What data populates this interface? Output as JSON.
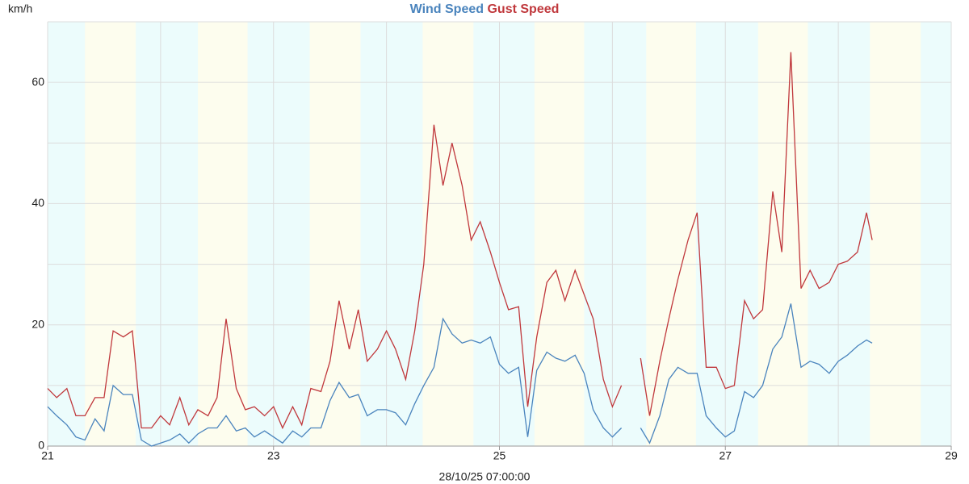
{
  "chart_data": {
    "type": "line",
    "y_label": "km/h",
    "x_label": "28/10/25 07:00:00",
    "x": [
      21,
      21.08,
      21.17,
      21.25,
      21.33,
      21.42,
      21.5,
      21.58,
      21.67,
      21.75,
      21.83,
      21.92,
      22,
      22.08,
      22.17,
      22.25,
      22.33,
      22.42,
      22.5,
      22.58,
      22.67,
      22.75,
      22.83,
      22.92,
      23,
      23.08,
      23.17,
      23.25,
      23.33,
      23.42,
      23.5,
      23.58,
      23.67,
      23.75,
      23.83,
      23.92,
      24,
      24.08,
      24.17,
      24.25,
      24.33,
      24.42,
      24.5,
      24.58,
      24.67,
      24.75,
      24.83,
      24.92,
      25,
      25.08,
      25.17,
      25.25,
      25.33,
      25.42,
      25.5,
      25.58,
      25.67,
      25.75,
      25.83,
      25.92,
      26,
      26.08,
      26.17,
      26.25,
      26.33,
      26.42,
      26.5,
      26.58,
      26.67,
      26.75,
      26.83,
      26.92,
      27,
      27.08,
      27.17,
      27.25,
      27.33,
      27.42,
      27.5,
      27.58,
      27.67,
      27.75,
      27.83,
      27.92,
      28,
      28.08,
      28.17,
      28.25,
      28.3
    ],
    "series": [
      {
        "name": "Wind Speed",
        "color": "#4a84bd",
        "values": [
          6.5,
          5,
          3.5,
          1.5,
          1,
          4.5,
          2.5,
          10,
          8.5,
          8.5,
          1,
          0,
          0.5,
          1,
          2,
          0.5,
          2,
          3,
          3,
          5,
          2.5,
          3,
          1.5,
          2.5,
          1.5,
          0.5,
          2.5,
          1.5,
          3,
          3,
          7.5,
          10.5,
          8,
          8.5,
          5,
          6,
          6,
          5.5,
          3.5,
          7,
          10,
          13,
          21,
          18.5,
          17,
          17.5,
          17,
          18,
          13.5,
          12,
          13,
          1.5,
          12.5,
          15.5,
          14.5,
          14,
          15,
          12,
          6,
          3,
          1.5,
          3,
          null,
          3,
          0.5,
          5,
          11,
          13,
          12,
          12,
          5,
          3,
          1.5,
          2.5,
          9,
          8,
          10,
          16,
          18,
          23.5,
          13,
          14,
          13.5,
          12,
          14,
          15,
          16.5,
          17.5,
          17
        ]
      },
      {
        "name": "Gust Speed",
        "color": "#c0383c",
        "values": [
          9.5,
          8,
          9.5,
          5,
          5,
          8,
          8,
          19,
          18,
          19,
          3,
          3,
          5,
          3.5,
          8,
          3.5,
          6,
          5,
          8,
          21,
          9.5,
          6,
          6.5,
          5,
          6.5,
          3,
          6.5,
          3.5,
          9.5,
          9,
          14,
          24,
          16,
          22.5,
          14,
          16,
          19,
          16,
          11,
          19,
          30,
          53,
          43,
          50,
          43,
          34,
          37,
          32,
          27,
          22.5,
          23,
          6.5,
          18,
          27,
          29,
          24,
          29,
          25,
          21,
          11,
          6.5,
          10,
          null,
          14.5,
          5,
          14,
          21,
          27.5,
          34,
          38.5,
          13,
          13,
          9.5,
          10,
          24,
          21,
          22.5,
          42,
          32,
          65,
          26,
          29,
          26,
          27,
          30,
          30.5,
          32,
          38.5,
          34
        ]
      }
    ],
    "xlim": [
      21,
      29
    ],
    "xticks": [
      21,
      23,
      25,
      27,
      29
    ],
    "xgrid": [
      21,
      22,
      23,
      24,
      25,
      26,
      27,
      28,
      29
    ],
    "ylim": [
      0,
      70
    ],
    "yticks": [
      0,
      20,
      40,
      60
    ],
    "ygrid": [
      0,
      10,
      20,
      30,
      40,
      50,
      60,
      70
    ],
    "background_color": "#ecfcfc",
    "shaded_color": "#fdfdee",
    "shaded_ranges": [
      [
        21.33,
        21.78
      ],
      [
        22.33,
        22.77
      ],
      [
        23.32,
        23.77
      ],
      [
        24.32,
        24.77
      ],
      [
        25.31,
        25.75
      ],
      [
        26.3,
        26.74
      ],
      [
        27.29,
        27.73
      ],
      [
        28.28,
        28.73
      ]
    ]
  }
}
